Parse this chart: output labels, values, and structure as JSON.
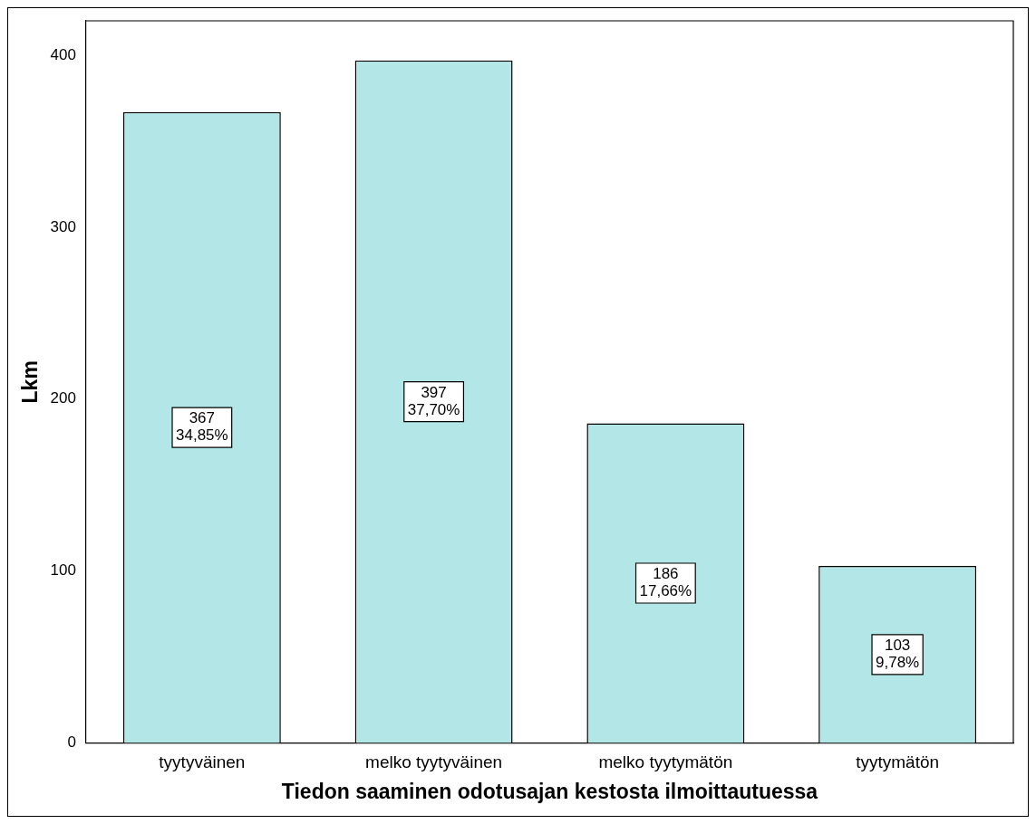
{
  "chart_data": {
    "type": "bar",
    "xlabel": "Tiedon saaminen odotusajan kestosta ilmoittautuessa",
    "ylabel": "Lkm",
    "categories": [
      "tyytyväinen",
      "melko tyytyväinen",
      "melko tyytymätön",
      "tyytymätön"
    ],
    "values": [
      367,
      397,
      186,
      103
    ],
    "value_labels": [
      "367\n34,85%",
      "397\n37,70%",
      "186\n17,66%",
      "103\n9,78%"
    ],
    "color": "#b3e6e6",
    "ylim": [
      0,
      420
    ],
    "yticks": [
      0,
      100,
      200,
      300,
      400
    ],
    "grid": false,
    "legend": false
  }
}
